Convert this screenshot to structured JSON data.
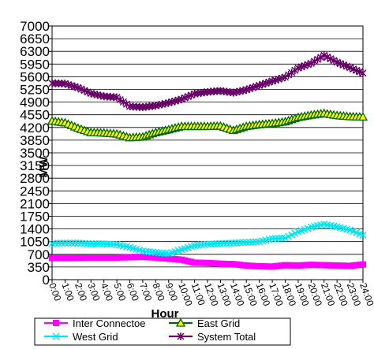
{
  "chart_data": {
    "type": "line",
    "title": "",
    "xlabel": "Hour",
    "ylabel": "MW",
    "ylim": [
      0,
      7000
    ],
    "yticks": [
      0,
      350,
      700,
      1050,
      1400,
      1750,
      2100,
      2450,
      2800,
      3150,
      3500,
      3850,
      4200,
      4550,
      4900,
      5250,
      5600,
      5950,
      6300,
      6650,
      7000
    ],
    "x": [
      "0:00",
      "1:00",
      "2:00",
      "3:00",
      "4:00",
      "5:00",
      "6:00",
      "7:00",
      "8:00",
      "9:00",
      "10:00",
      "11:00",
      "12:00",
      "13:00",
      "14:00",
      "15:00",
      "16:00",
      "17:00",
      "18:00",
      "19:00",
      "20:00",
      "21:00",
      "22:00",
      "23:00",
      "24:00"
    ],
    "grid": true,
    "legend_position": "bottom",
    "series": [
      {
        "name": "Inter Connectoe",
        "color": "#ff00ff",
        "marker": "square",
        "values": [
          600,
          600,
          605,
          610,
          610,
          610,
          620,
          630,
          610,
          580,
          550,
          470,
          460,
          440,
          430,
          390,
          370,
          360,
          400,
          390,
          410,
          400,
          390,
          380,
          420
        ]
      },
      {
        "name": "East Grid",
        "color": "#006400",
        "marker": "triangle",
        "values": [
          4380,
          4330,
          4180,
          4060,
          4050,
          4020,
          3920,
          3940,
          4060,
          4140,
          4230,
          4230,
          4230,
          4240,
          4120,
          4230,
          4280,
          4310,
          4360,
          4480,
          4540,
          4590,
          4530,
          4500,
          4490
        ]
      },
      {
        "name": "West Grid",
        "color": "#00e5ee",
        "marker": "x",
        "values": [
          1000,
          1010,
          1010,
          990,
          990,
          970,
          890,
          790,
          750,
          720,
          830,
          940,
          980,
          1000,
          1010,
          1030,
          1050,
          1130,
          1150,
          1320,
          1450,
          1530,
          1460,
          1370,
          1230
        ]
      },
      {
        "name": "System Total",
        "color": "#660066",
        "marker": "star",
        "values": [
          5420,
          5410,
          5300,
          5140,
          5060,
          5030,
          4780,
          4760,
          4800,
          4880,
          4980,
          5130,
          5180,
          5210,
          5160,
          5240,
          5360,
          5480,
          5590,
          5840,
          5970,
          6190,
          6000,
          5850,
          5700
        ]
      }
    ]
  }
}
